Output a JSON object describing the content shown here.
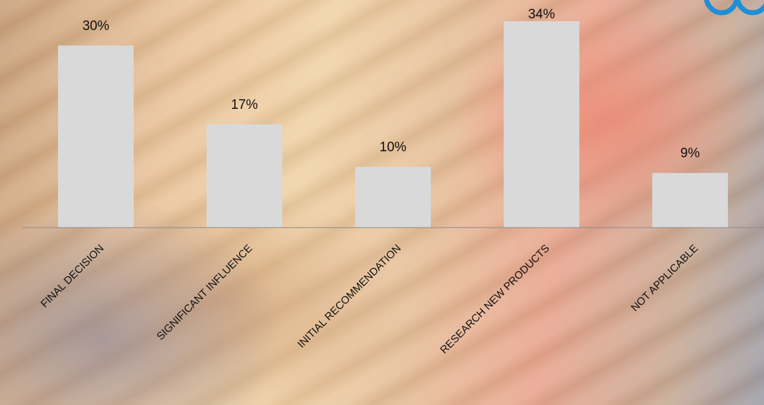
{
  "chart_data": {
    "type": "bar",
    "categories": [
      "FINAL DECISION",
      "SIGNIFICANT INFLUENCE",
      "INITIAL RECOMMENDATION",
      "RESEARCH NEW PRODUCTS",
      "NOT APPLICABLE"
    ],
    "values": [
      30,
      17,
      10,
      34,
      9
    ],
    "data_labels": [
      "30%",
      "17%",
      "10%",
      "34%",
      "9%"
    ],
    "ylim": [
      0,
      35
    ],
    "grid": false,
    "legend": "none",
    "bar_color": "#d9d9d9"
  },
  "colors": {
    "accent": "#1e8fd6"
  }
}
